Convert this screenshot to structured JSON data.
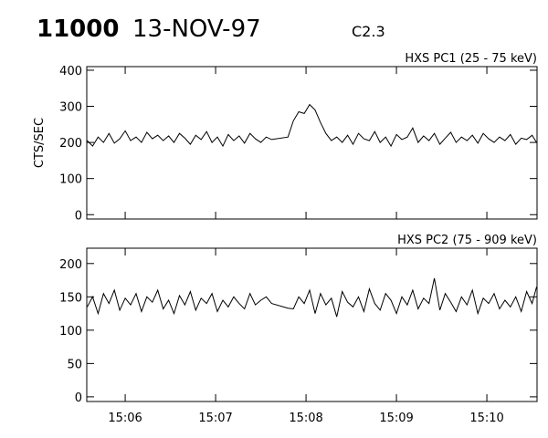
{
  "header": {
    "number": "11000",
    "date": "13-NOV-97",
    "flare_class": "C2.3"
  },
  "chart_data": [
    {
      "type": "line",
      "title": "HXS PC1 (25 - 75 keV)",
      "ylabel": "CTS/SEC",
      "xlim": [
        5.575,
        10.555
      ],
      "ylim": [
        -12,
        410
      ],
      "yticks": [
        0,
        100,
        200,
        300,
        400
      ],
      "series": [
        {
          "color": "#000000",
          "x": [
            5.58,
            5.64,
            5.7,
            5.76,
            5.82,
            5.88,
            5.94,
            6.0,
            6.06,
            6.12,
            6.18,
            6.24,
            6.3,
            6.36,
            6.42,
            6.48,
            6.54,
            6.6,
            6.66,
            6.72,
            6.78,
            6.84,
            6.9,
            6.96,
            7.02,
            7.08,
            7.14,
            7.2,
            7.26,
            7.32,
            7.38,
            7.44,
            7.5,
            7.56,
            7.62,
            7.8,
            7.86,
            7.92,
            7.98,
            8.04,
            8.1,
            8.16,
            8.22,
            8.28,
            8.34,
            8.4,
            8.46,
            8.52,
            8.58,
            8.64,
            8.7,
            8.76,
            8.82,
            8.88,
            8.94,
            9.0,
            9.06,
            9.12,
            9.18,
            9.24,
            9.3,
            9.36,
            9.42,
            9.48,
            9.54,
            9.6,
            9.66,
            9.72,
            9.78,
            9.84,
            9.9,
            9.96,
            10.02,
            10.08,
            10.14,
            10.2,
            10.26,
            10.32,
            10.38,
            10.44,
            10.5,
            10.55
          ],
          "values": [
            205,
            190,
            215,
            200,
            225,
            198,
            210,
            232,
            205,
            215,
            200,
            228,
            210,
            220,
            205,
            218,
            200,
            225,
            212,
            195,
            220,
            208,
            230,
            200,
            215,
            190,
            222,
            205,
            218,
            198,
            225,
            210,
            200,
            215,
            208,
            215,
            260,
            285,
            280,
            305,
            290,
            255,
            225,
            205,
            215,
            200,
            220,
            195,
            225,
            210,
            205,
            230,
            200,
            215,
            190,
            222,
            208,
            215,
            240,
            200,
            218,
            205,
            225,
            195,
            212,
            228,
            200,
            215,
            205,
            220,
            198,
            225,
            210,
            200,
            215,
            205,
            222,
            195,
            212,
            208,
            220,
            200
          ]
        }
      ]
    },
    {
      "type": "line",
      "title": "HXS PC2 (75 - 909 keV)",
      "xlim": [
        5.575,
        10.555
      ],
      "ylim": [
        -7,
        223
      ],
      "yticks": [
        0,
        50,
        100,
        150,
        200
      ],
      "xticks": [
        {
          "value": 6,
          "label": "15:06"
        },
        {
          "value": 7,
          "label": "15:07"
        },
        {
          "value": 8,
          "label": "15:08"
        },
        {
          "value": 9,
          "label": "15:09"
        },
        {
          "value": 10,
          "label": "15:10"
        }
      ],
      "series": [
        {
          "color": "#000000",
          "x": [
            5.58,
            5.64,
            5.7,
            5.76,
            5.82,
            5.88,
            5.94,
            6.0,
            6.06,
            6.12,
            6.18,
            6.24,
            6.3,
            6.36,
            6.42,
            6.48,
            6.54,
            6.6,
            6.66,
            6.72,
            6.78,
            6.84,
            6.9,
            6.96,
            7.02,
            7.08,
            7.14,
            7.2,
            7.26,
            7.32,
            7.38,
            7.44,
            7.5,
            7.56,
            7.62,
            7.8,
            7.86,
            7.92,
            7.98,
            8.04,
            8.1,
            8.16,
            8.22,
            8.28,
            8.34,
            8.4,
            8.46,
            8.52,
            8.58,
            8.64,
            8.7,
            8.76,
            8.82,
            8.88,
            8.94,
            9.0,
            9.06,
            9.12,
            9.18,
            9.24,
            9.3,
            9.36,
            9.42,
            9.48,
            9.54,
            9.6,
            9.66,
            9.72,
            9.78,
            9.84,
            9.9,
            9.96,
            10.02,
            10.08,
            10.14,
            10.2,
            10.26,
            10.32,
            10.38,
            10.44,
            10.5,
            10.55
          ],
          "values": [
            135,
            150,
            125,
            155,
            140,
            160,
            130,
            148,
            138,
            155,
            128,
            150,
            142,
            160,
            132,
            145,
            125,
            152,
            138,
            158,
            130,
            148,
            140,
            155,
            128,
            145,
            135,
            150,
            140,
            132,
            155,
            138,
            145,
            150,
            140,
            133,
            132,
            150,
            140,
            160,
            125,
            155,
            138,
            148,
            120,
            158,
            142,
            135,
            150,
            128,
            162,
            140,
            130,
            155,
            145,
            125,
            150,
            138,
            160,
            132,
            148,
            140,
            178,
            130,
            155,
            142,
            128,
            150,
            138,
            160,
            125,
            148,
            140,
            155,
            132,
            145,
            135,
            150,
            128,
            158,
            140,
            165
          ]
        }
      ]
    }
  ]
}
